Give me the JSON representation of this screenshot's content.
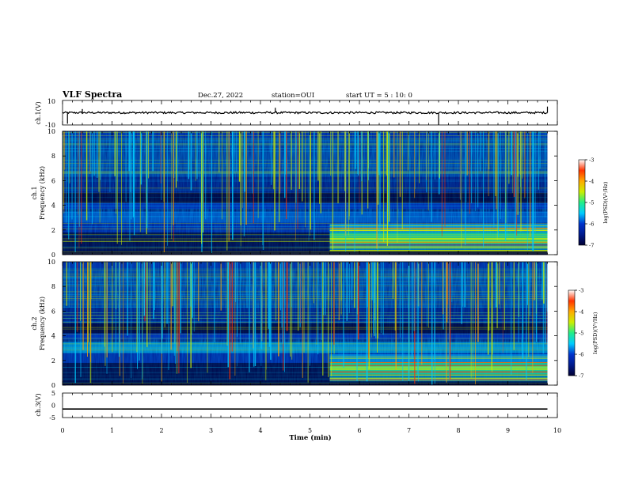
{
  "header": {
    "title": "VLF Spectra",
    "date": "Dec.27, 2022",
    "station": "station=OUI",
    "start_ut": "start UT =  5 : 10: 0"
  },
  "colors": {
    "colormap": [
      "#000033",
      "#001a8c",
      "#0033cc",
      "#0077ee",
      "#00ccff",
      "#22ee88",
      "#ccee00",
      "#ffaa00",
      "#ff3300",
      "#ffffff"
    ]
  },
  "chart_data": [
    {
      "id": "ch1-waveform",
      "type": "line",
      "ylabel": "ch.1(V)",
      "ylim": [
        -10,
        10
      ],
      "ytick_labels": [
        "10",
        "-10"
      ],
      "x": [
        0,
        0.1,
        0.4,
        1.0,
        2.0,
        3.0,
        4.3,
        5.0,
        6.0,
        7.0,
        7.6,
        8.0,
        9.0,
        9.8
      ],
      "y": [
        0,
        -9,
        3,
        0,
        0,
        0,
        4,
        0,
        0,
        0,
        -10,
        0,
        0,
        5
      ]
    },
    {
      "id": "ch1-spectrogram",
      "type": "heatmap",
      "ylabel_1": "ch.1",
      "ylabel_2": "Frequency (kHz)",
      "ylim": [
        0,
        10
      ],
      "ytick_labels": [
        "0",
        "2",
        "4",
        "6",
        "8",
        "10"
      ],
      "colorbar_label": "log(PSD)(V²/Hz)",
      "colorbar_range": [
        -7,
        -3
      ],
      "colorbar_tick_labels": [
        "-3",
        "-4",
        "-5",
        "-6",
        "-7"
      ]
    },
    {
      "id": "ch2-spectrogram",
      "type": "heatmap",
      "ylabel_1": "ch.2",
      "ylabel_2": "Frequency (kHz)",
      "ylim": [
        0,
        10
      ],
      "ytick_labels": [
        "0",
        "2",
        "4",
        "6",
        "8",
        "10"
      ],
      "colorbar_label": "log(PSD)(V²/Hz)",
      "colorbar_range": [
        -7,
        -3
      ],
      "colorbar_tick_labels": [
        "-3",
        "-4",
        "-5",
        "-6",
        "-7"
      ]
    },
    {
      "id": "ch3-waveform",
      "type": "line",
      "ylabel": "ch.3(V)",
      "ylim": [
        -5,
        5
      ],
      "ytick_labels": [
        "5",
        "0",
        "-5"
      ],
      "x": [
        0,
        9.8
      ],
      "y": [
        -1.5,
        -1.5
      ],
      "xlabel": "Time (min)",
      "xlim": [
        0,
        10
      ],
      "xtick_labels": [
        "0",
        "1",
        "2",
        "3",
        "4",
        "5",
        "6",
        "7",
        "8",
        "9",
        "10"
      ]
    }
  ]
}
